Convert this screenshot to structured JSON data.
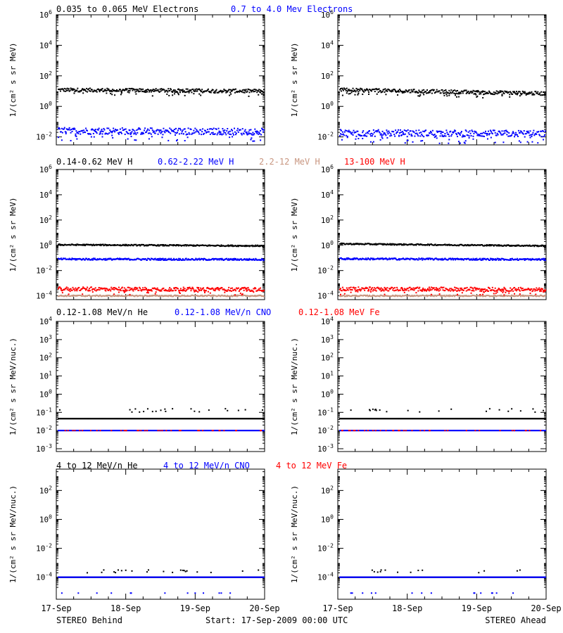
{
  "colors": {
    "black": "#000000",
    "blue": "#0000ff",
    "tan": "#c89680",
    "red": "#ff0000"
  },
  "footer": {
    "left": "STEREO Behind",
    "center": "Start: 17-Sep-2009 00:00 UTC",
    "right": "STEREO Ahead"
  },
  "chart_data": [
    {
      "type": "scatter",
      "panel": "electrons",
      "ylabel": "1/(cm² s sr MeV)",
      "ylog": true,
      "ylim": [
        0.003,
        1000000
      ],
      "yticks": [
        "10^-2",
        "10^0",
        "10^2",
        "10^4",
        "10^6"
      ],
      "ytick_values": [
        0.01,
        1,
        100,
        10000,
        1000000
      ],
      "legend": [
        {
          "name": "0.035 to 0.065 MeV Electrons",
          "color": "#000000"
        },
        {
          "name": "0.7 to 4.0 Mev Electrons",
          "color": "#0000ff"
        }
      ],
      "series": [
        {
          "name": "0.035 to 0.065 MeV Electrons",
          "color": "#000000",
          "behind": [
            12,
            10
          ],
          "ahead": [
            12,
            7
          ],
          "noise": 0.12
        },
        {
          "name": "0.7 to 4.0 Mev Electrons",
          "color": "#0000ff",
          "behind": [
            0.025,
            0.022
          ],
          "ahead": [
            0.018,
            0.016
          ],
          "noise": 0.22
        }
      ]
    },
    {
      "type": "scatter",
      "panel": "protons",
      "ylabel": "1/(cm² s sr MeV)",
      "ylog": true,
      "ylim": [
        5e-05,
        1000000
      ],
      "yticks": [
        "10^-4",
        "10^-2",
        "10^0",
        "10^2",
        "10^4",
        "10^6"
      ],
      "ytick_values": [
        0.0001,
        0.01,
        1,
        100,
        10000,
        1000000
      ],
      "legend": [
        {
          "name": "0.14-0.62 MeV H",
          "color": "#000000"
        },
        {
          "name": "0.62-2.22 MeV H",
          "color": "#0000ff"
        },
        {
          "name": "2.2-12 MeV H",
          "color": "#c89680"
        },
        {
          "name": "13-100 MeV H",
          "color": "#ff0000"
        }
      ],
      "series": [
        {
          "name": "0.14-0.62 MeV H",
          "color": "#000000",
          "behind": [
            1.1,
            0.9
          ],
          "ahead": [
            1.3,
            0.9
          ],
          "noise": 0.05
        },
        {
          "name": "0.62-2.22 MeV H",
          "color": "#0000ff",
          "behind": [
            0.08,
            0.075
          ],
          "ahead": [
            0.085,
            0.075
          ],
          "noise": 0.07
        },
        {
          "name": "2.2-12 MeV H",
          "color": "#c89680",
          "behind": [
            0.0001,
            0.0001
          ],
          "ahead": [
            0.0001,
            0.0001
          ],
          "noise": 0.05
        },
        {
          "name": "13-100 MeV H",
          "color": "#ff0000",
          "behind": [
            0.00035,
            0.00032
          ],
          "ahead": [
            0.00035,
            0.00032
          ],
          "noise": 0.15
        }
      ]
    },
    {
      "type": "scatter",
      "panel": "heavy-low",
      "ylabel": "1/(cm² s sr MeV/nuc.)",
      "ylog": true,
      "ylim": [
        0.0007,
        10000
      ],
      "yticks": [
        "10^-3",
        "10^-2",
        "10^-1",
        "10^0",
        "10^1",
        "10^2",
        "10^3",
        "10^4"
      ],
      "ytick_values": [
        0.001,
        0.01,
        0.1,
        1,
        10,
        100,
        1000,
        10000
      ],
      "legend": [
        {
          "name": "0.12-1.08 MeV/n He",
          "color": "#000000"
        },
        {
          "name": "0.12-1.08 MeV/n CNO",
          "color": "#0000ff"
        },
        {
          "name": "0.12-1.08 MeV Fe",
          "color": "#ff0000"
        }
      ],
      "series": [
        {
          "name": "0.12-1.08 MeV/n He",
          "color": "#000000",
          "behind": [
            0.045,
            0.045
          ],
          "ahead": [
            0.045,
            0.045
          ],
          "noise": 0.0,
          "sparse": 0.1
        },
        {
          "name": "0.12-1.08 MeV/n CNO",
          "color": "#0000ff",
          "behind": [
            0.01,
            0.01
          ],
          "ahead": [
            0.01,
            0.01
          ],
          "noise": 0.0
        },
        {
          "name": "0.12-1.08 MeV Fe",
          "color": "#ff0000",
          "behind": [
            0.01,
            0.01
          ],
          "ahead": [
            0.01,
            0.01
          ],
          "noise": 0.0,
          "sparse_only": true
        }
      ]
    },
    {
      "type": "scatter",
      "panel": "heavy-high",
      "ylabel": "1/(cm² s sr MeV/nuc.)",
      "ylog": true,
      "ylim": [
        3e-06,
        3000
      ],
      "yticks": [
        "10^-4",
        "10^-2",
        "10^0",
        "10^2"
      ],
      "ytick_values": [
        0.0001,
        0.01,
        1,
        100
      ],
      "legend": [
        {
          "name": "4 to 12 MeV/n He",
          "color": "#000000"
        },
        {
          "name": "4 to 12 MeV/n CNO",
          "color": "#0000ff"
        },
        {
          "name": "4 to 12 MeV Fe",
          "color": "#ff0000"
        }
      ],
      "series": [
        {
          "name": "4 to 12 MeV/n He",
          "color": "#000000",
          "behind": [
            0.0001,
            0.0001
          ],
          "ahead": [
            0.0001,
            0.0001
          ],
          "noise": 0.0,
          "sparse": 0.0002
        },
        {
          "name": "4 to 12 MeV/n CNO",
          "color": "#0000ff",
          "behind": [
            0.0001,
            0.0001
          ],
          "ahead": [
            0.0001,
            0.0001
          ],
          "noise": 0.0,
          "low": 8e-06
        }
      ]
    }
  ],
  "x_axis": {
    "ticks": [
      "17-Sep",
      "18-Sep",
      "19-Sep",
      "20-Sep"
    ],
    "xlim": [
      "17-Sep-2009 00:00",
      "20-Sep-2009 00:00"
    ]
  }
}
